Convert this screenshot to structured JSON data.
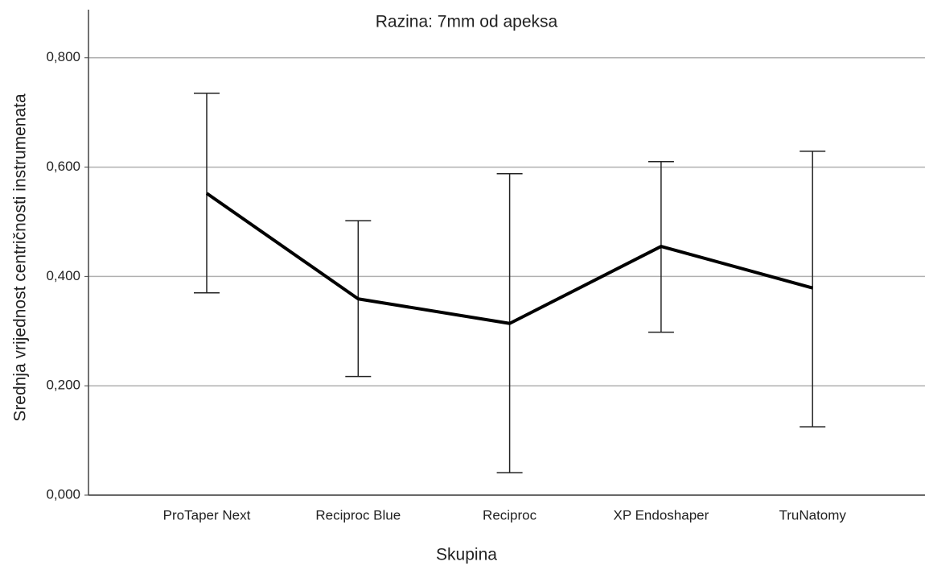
{
  "chart_data": {
    "type": "line",
    "title": "Razina: 7mm od apeksa",
    "xlabel": "Skupina",
    "ylabel": "Srednja vrijednost centričnosti instrumenata",
    "categories": [
      "ProTaper Next",
      "Reciproc Blue",
      "Reciproc",
      "XP Endoshaper",
      "TruNatomy"
    ],
    "series": [
      {
        "color": "#000000",
        "values": [
          0.552,
          0.359,
          0.314,
          0.455,
          0.379
        ],
        "lower": [
          0.37,
          0.217,
          0.041,
          0.298,
          0.125
        ],
        "upper": [
          0.735,
          0.502,
          0.588,
          0.61,
          0.629
        ]
      }
    ],
    "ylim": [
      0,
      0.888
    ],
    "yticks": [
      {
        "value": 0,
        "label": "0,000"
      },
      {
        "value": 0.2,
        "label": "0,200"
      },
      {
        "value": 0.4,
        "label": "0,400"
      },
      {
        "value": 0.6,
        "label": "0,600"
      },
      {
        "value": 0.8,
        "label": "0,800"
      }
    ],
    "grid": true
  }
}
